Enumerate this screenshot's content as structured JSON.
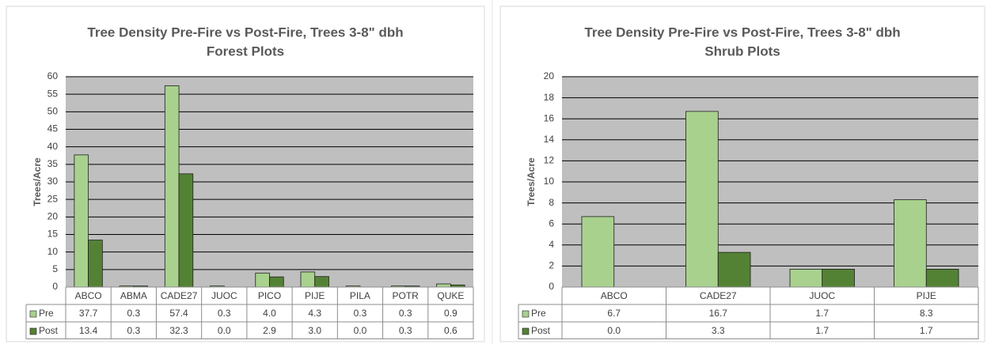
{
  "chart_data": [
    {
      "type": "bar",
      "title": "Tree Density Pre-Fire vs Post-Fire, Trees 3-8\" dbh",
      "subtitle": "Forest Plots",
      "y_label": "Trees/Acre",
      "categories": [
        "ABCO",
        "ABMA",
        "CADE27",
        "JUOC",
        "PICO",
        "PIJE",
        "PILA",
        "POTR",
        "QUKE"
      ],
      "series": [
        {
          "name": "Pre",
          "color": "#a9d18e",
          "values": [
            37.7,
            0.3,
            57.4,
            0.3,
            4.0,
            4.3,
            0.3,
            0.3,
            0.9
          ],
          "value_labels": [
            "37.7",
            "0.3",
            "57.4",
            "0.3",
            "4.0",
            "4.3",
            "0.3",
            "0.3",
            "0.9"
          ]
        },
        {
          "name": "Post",
          "color": "#548235",
          "values": [
            13.4,
            0.3,
            32.3,
            0.0,
            2.9,
            3.0,
            0.0,
            0.3,
            0.6
          ],
          "value_labels": [
            "13.4",
            "0.3",
            "32.3",
            "0.0",
            "2.9",
            "3.0",
            "0.0",
            "0.3",
            "0.6"
          ]
        }
      ],
      "ylim": [
        0,
        60
      ],
      "yticks": [
        0,
        5,
        10,
        15,
        20,
        25,
        30,
        35,
        40,
        45,
        50,
        55,
        60
      ],
      "grid": true
    },
    {
      "type": "bar",
      "title": "Tree Density Pre-Fire vs Post-Fire, Trees 3-8\" dbh",
      "subtitle": "Shrub Plots",
      "y_label": "Trees/Acre",
      "categories": [
        "ABCO",
        "CADE27",
        "JUOC",
        "PIJE"
      ],
      "series": [
        {
          "name": "Pre",
          "color": "#a9d18e",
          "values": [
            6.7,
            16.7,
            1.7,
            8.3
          ],
          "value_labels": [
            "6.7",
            "16.7",
            "1.7",
            "8.3"
          ]
        },
        {
          "name": "Post",
          "color": "#548235",
          "values": [
            0.0,
            3.3,
            1.7,
            1.7
          ],
          "value_labels": [
            "0.0",
            "3.3",
            "1.7",
            "1.7"
          ]
        }
      ],
      "ylim": [
        0,
        20
      ],
      "yticks": [
        0,
        2,
        4,
        6,
        8,
        10,
        12,
        14,
        16,
        18,
        20
      ],
      "grid": true
    }
  ]
}
